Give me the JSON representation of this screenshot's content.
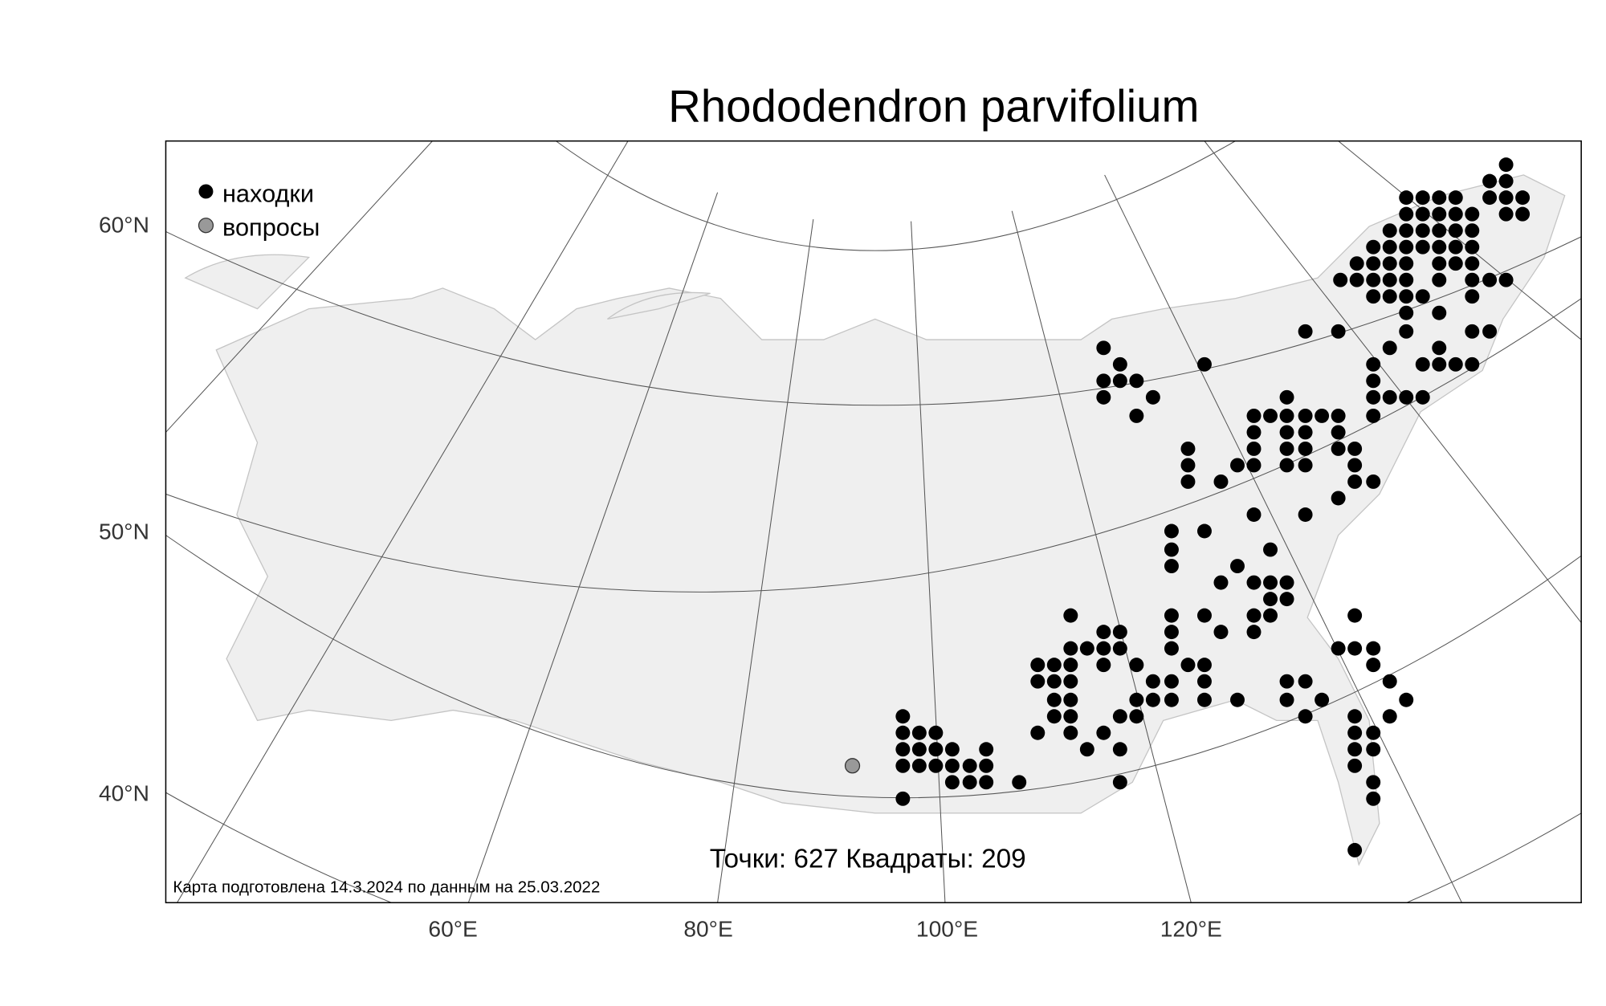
{
  "title": "Rhododendron parvifolium",
  "legend": {
    "found": "находки",
    "questions": "вопросы"
  },
  "lat_labels": [
    "60°N",
    "50°N",
    "40°N"
  ],
  "lon_labels": [
    "60°E",
    "80°E",
    "100°E",
    "120°E"
  ],
  "stats": "Точки: 627 Квадраты: 209",
  "footer": "Карта подготовлена 14.3.2024 по данным на 25.03.2022"
}
